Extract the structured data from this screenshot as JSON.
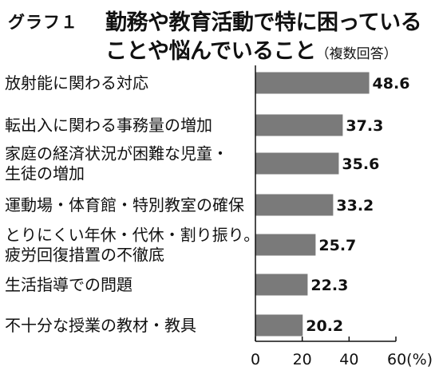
{
  "chart_data": {
    "type": "bar",
    "orientation": "horizontal",
    "figure_label": "グラフ１",
    "title_line1": "勤務や教育活動で特に困っている",
    "title_line2": "ことや悩んでいること",
    "title_note": "（複数回答）",
    "categories": [
      [
        "放射能に関わる対応"
      ],
      [
        "転出入に関わる事務量の増加"
      ],
      [
        "家庭の経済状況が困難な児童・",
        "生徒の増加"
      ],
      [
        "運動場・体育館・特別教室の確保"
      ],
      [
        "とりにくい年休・代休・割り振り。",
        "疲労回復措置の不徹底"
      ],
      [
        "生活指導での問題"
      ],
      [
        "不十分な授業の教材・教具"
      ]
    ],
    "values": [
      48.6,
      37.3,
      35.6,
      33.2,
      25.7,
      22.3,
      20.2
    ],
    "value_labels": [
      "48.6",
      "37.3",
      "35.6",
      "33.2",
      "25.7",
      "22.3",
      "20.2"
    ],
    "xlim": [
      0,
      60
    ],
    "x_ticks": [
      "0",
      "20",
      "40",
      "60(%)"
    ],
    "tick_values": [
      0,
      20,
      40,
      60
    ],
    "grid": false,
    "legend": "none",
    "bar_color": "#7a7a7a"
  }
}
